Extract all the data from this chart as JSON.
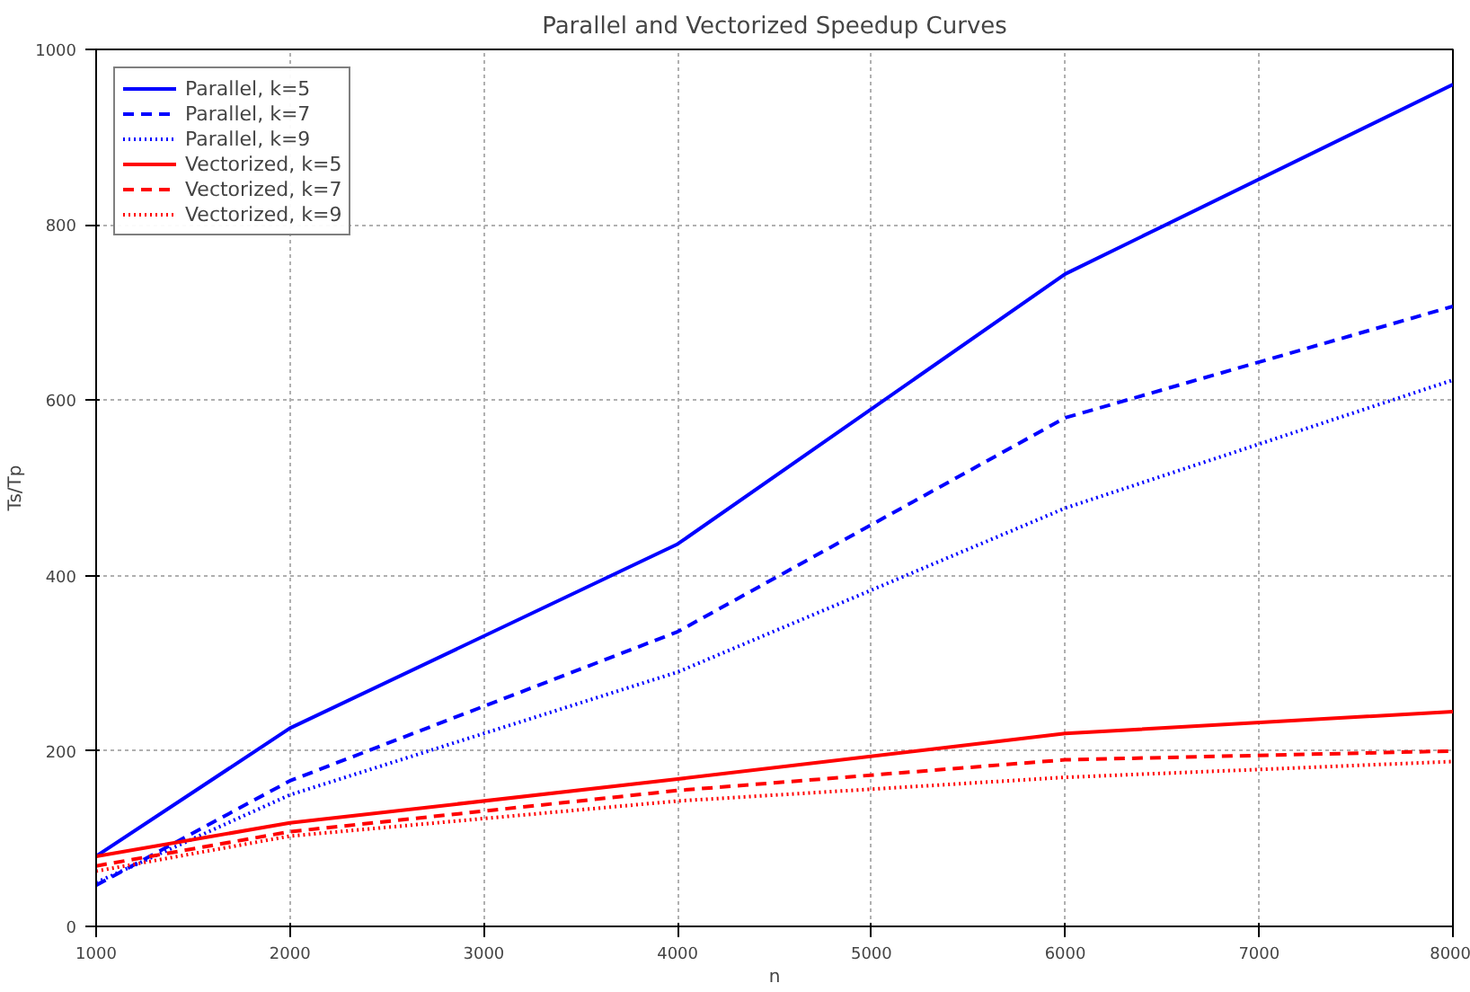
{
  "chart_data": {
    "type": "line",
    "title": "Parallel and Vectorized Speedup Curves",
    "xlabel": "n",
    "ylabel": "Ts/Tp",
    "x": [
      1000,
      2000,
      4000,
      6000,
      8000
    ],
    "series": [
      {
        "name": "Parallel, k=5",
        "color": "#0000ff",
        "line_style": "solid",
        "values": [
          80,
          226,
          436,
          744,
          960
        ]
      },
      {
        "name": "Parallel, k=7",
        "color": "#0000ff",
        "line_style": "dashed",
        "values": [
          47,
          166,
          336,
          580,
          707
        ]
      },
      {
        "name": "Parallel, k=9",
        "color": "#0000ff",
        "line_style": "dotted",
        "values": [
          50,
          150,
          290,
          477,
          623
        ]
      },
      {
        "name": "Vectorized, k=5",
        "color": "#ff0000",
        "line_style": "solid",
        "values": [
          80,
          118,
          168,
          220,
          245
        ]
      },
      {
        "name": "Vectorized, k=7",
        "color": "#ff0000",
        "line_style": "dashed",
        "values": [
          69,
          108,
          155,
          190,
          200
        ]
      },
      {
        "name": "Vectorized, k=9",
        "color": "#ff0000",
        "line_style": "dotted",
        "values": [
          63,
          103,
          143,
          170,
          188
        ]
      }
    ],
    "xlim": [
      1000,
      8000
    ],
    "ylim": [
      0,
      1000
    ],
    "xticks": [
      1000,
      2000,
      3000,
      4000,
      5000,
      6000,
      7000,
      8000
    ],
    "yticks": [
      0,
      200,
      400,
      600,
      800,
      1000
    ],
    "grid": true,
    "legend": "top left",
    "marker": "none"
  }
}
